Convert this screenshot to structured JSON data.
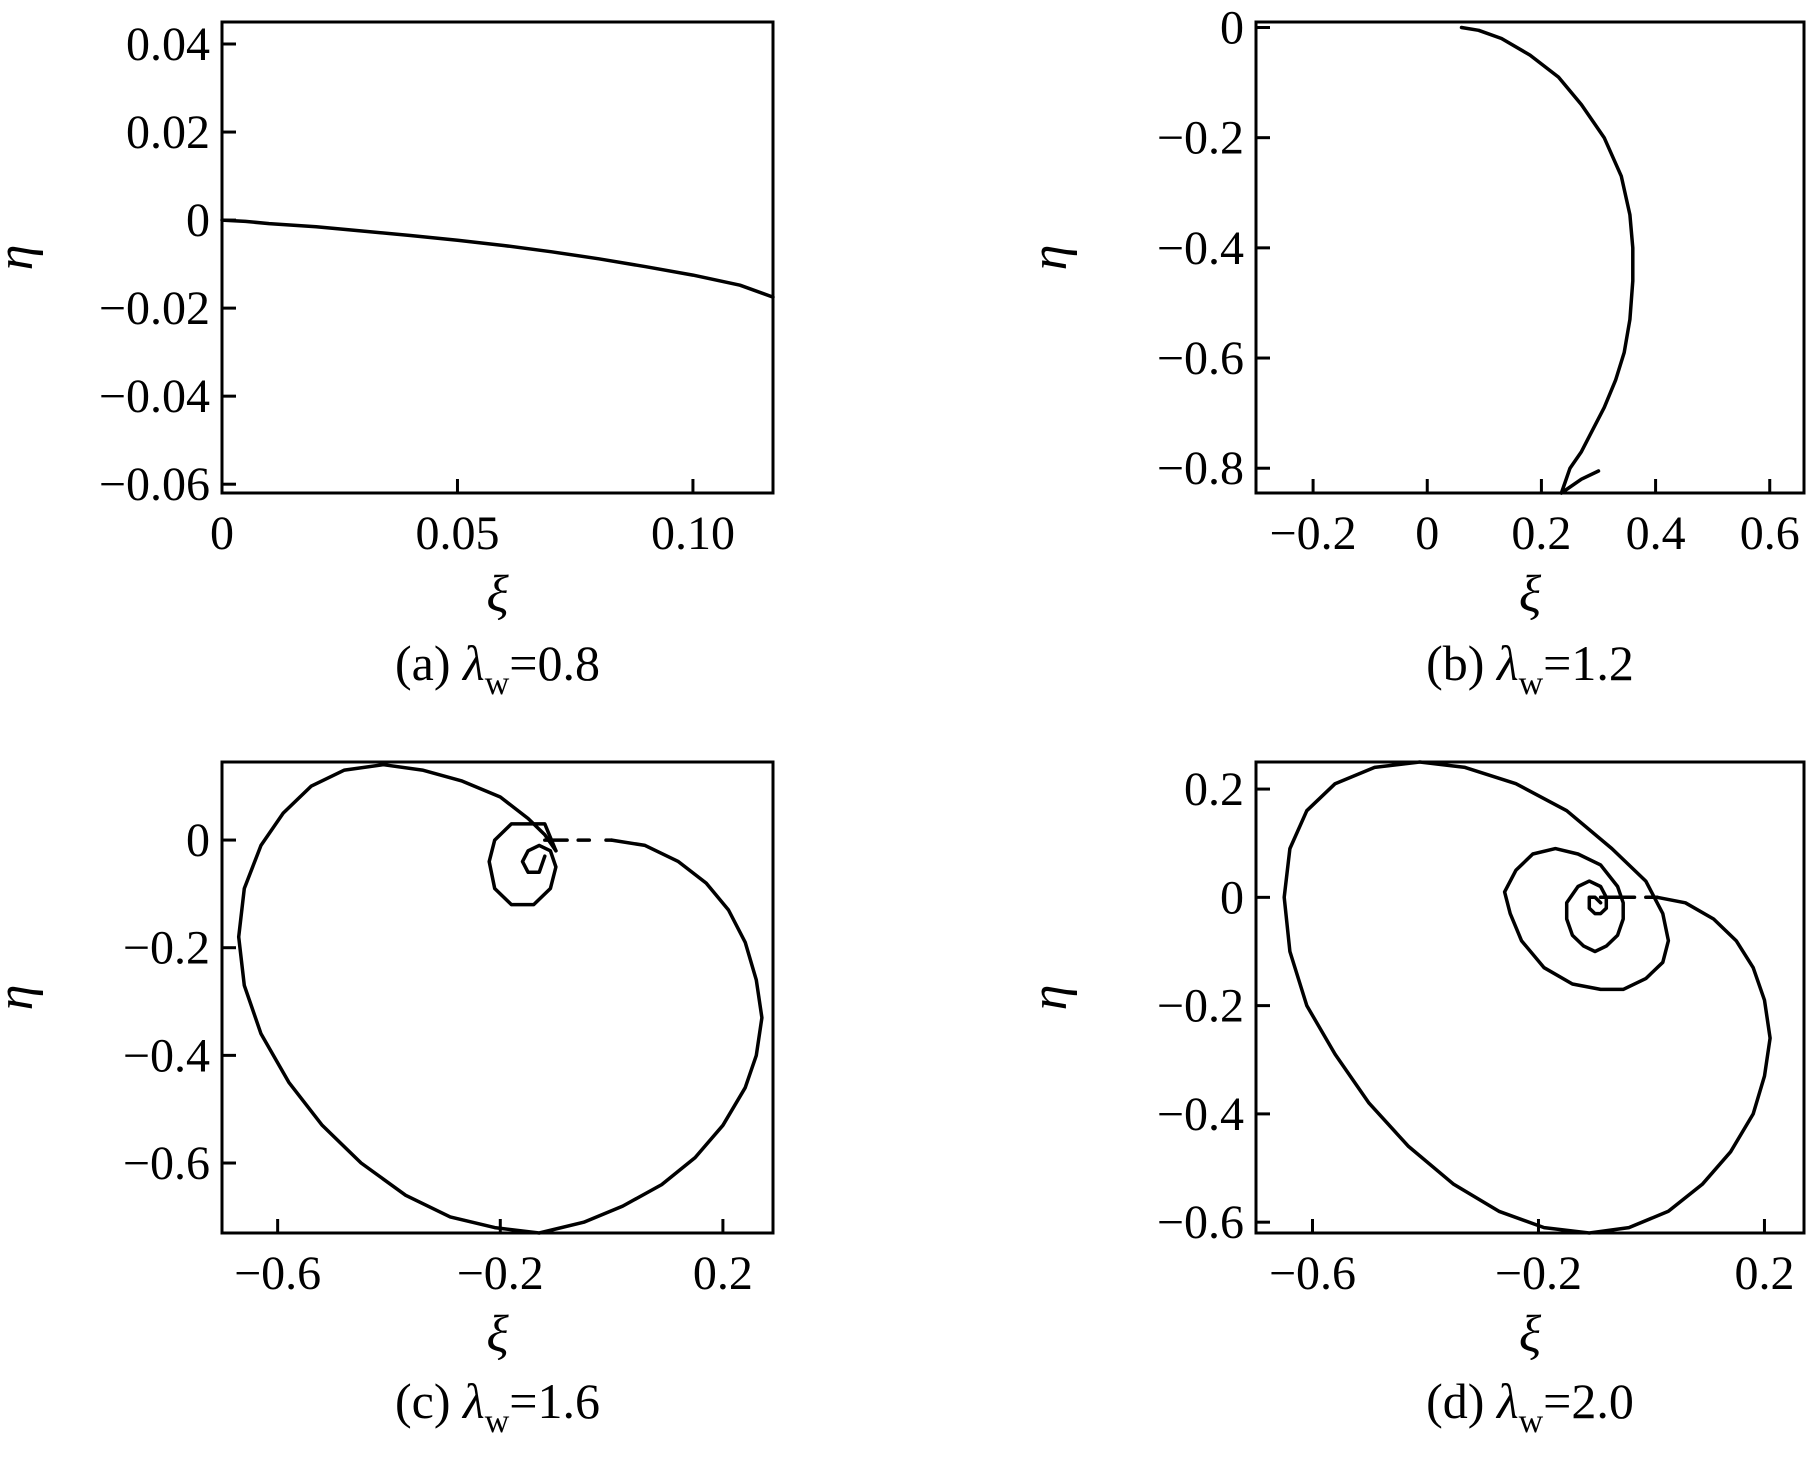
{
  "chart_data": [
    {
      "type": "line",
      "panel": "a",
      "caption": {
        "prefix": "(a) ",
        "symbol": "λ",
        "subscript": "w",
        "suffix": "=0.8"
      },
      "xlabel": "ξ",
      "ylabel": "η",
      "xlim": [
        0,
        0.117
      ],
      "ylim": [
        -0.062,
        0.045
      ],
      "xticks": [
        {
          "v": 0,
          "label": "0"
        },
        {
          "v": 0.05,
          "label": "0.05"
        },
        {
          "v": 0.1,
          "label": "0.10"
        }
      ],
      "yticks": [
        {
          "v": 0.04,
          "label": "0.04"
        },
        {
          "v": 0.02,
          "label": "0.02"
        },
        {
          "v": 0,
          "label": "0"
        },
        {
          "v": -0.02,
          "label": "−0.02"
        },
        {
          "v": -0.04,
          "label": "−0.04"
        },
        {
          "v": -0.06,
          "label": "−0.06"
        }
      ],
      "series": [
        {
          "x": [
            0,
            0.005,
            0.01,
            0.02,
            0.03,
            0.04,
            0.05,
            0.06,
            0.07,
            0.08,
            0.09,
            0.1,
            0.11,
            0.117
          ],
          "y": [
            0,
            -0.0003,
            -0.0008,
            -0.0015,
            -0.0025,
            -0.0035,
            -0.0046,
            -0.0058,
            -0.0072,
            -0.0088,
            -0.0106,
            -0.0125,
            -0.0148,
            -0.0175
          ]
        }
      ]
    },
    {
      "type": "line",
      "panel": "b",
      "caption": {
        "prefix": "(b) ",
        "symbol": "λ",
        "subscript": "w",
        "suffix": "=1.2"
      },
      "xlabel": "ξ",
      "ylabel": "η",
      "xlim": [
        -0.3,
        0.66
      ],
      "ylim": [
        -0.845,
        0.01
      ],
      "xticks": [
        {
          "v": -0.2,
          "label": "−0.2"
        },
        {
          "v": 0,
          "label": "0"
        },
        {
          "v": 0.2,
          "label": "0.2"
        },
        {
          "v": 0.4,
          "label": "0.4"
        },
        {
          "v": 0.6,
          "label": "0.6"
        }
      ],
      "yticks": [
        {
          "v": 0,
          "label": "0"
        },
        {
          "v": -0.2,
          "label": "−0.2"
        },
        {
          "v": -0.4,
          "label": "−0.4"
        },
        {
          "v": -0.6,
          "label": "−0.6"
        },
        {
          "v": -0.8,
          "label": "−0.8"
        }
      ],
      "series": [
        {
          "x": [
            0.06,
            0.09,
            0.13,
            0.18,
            0.23,
            0.27,
            0.31,
            0.34,
            0.355,
            0.36,
            0.36,
            0.355,
            0.345,
            0.33,
            0.31,
            0.29,
            0.27,
            0.25,
            0.235
          ],
          "y": [
            0,
            -0.005,
            -0.02,
            -0.05,
            -0.09,
            -0.14,
            -0.2,
            -0.27,
            -0.34,
            -0.4,
            -0.46,
            -0.53,
            -0.59,
            -0.64,
            -0.69,
            -0.73,
            -0.77,
            -0.8,
            -0.845
          ]
        },
        {
          "x": [
            0.235,
            0.27,
            0.3
          ],
          "y": [
            -0.845,
            -0.82,
            -0.805
          ]
        }
      ]
    },
    {
      "type": "line",
      "panel": "c",
      "caption": {
        "prefix": "(c) ",
        "symbol": "λ",
        "subscript": "w",
        "suffix": "=1.6"
      },
      "xlabel": "ξ",
      "ylabel": "η",
      "xlim": [
        -0.7,
        0.29
      ],
      "ylim": [
        -0.73,
        0.145
      ],
      "xticks": [
        {
          "v": -0.6,
          "label": "−0.6"
        },
        {
          "v": -0.2,
          "label": "−0.2"
        },
        {
          "v": 0.2,
          "label": "0.2"
        }
      ],
      "yticks": [
        {
          "v": 0,
          "label": "0"
        },
        {
          "v": -0.2,
          "label": "−0.2"
        },
        {
          "v": -0.4,
          "label": "−0.4"
        },
        {
          "v": -0.6,
          "label": "−0.6"
        }
      ],
      "series": [
        {
          "x": [
            0.0,
            0.06,
            0.12,
            0.17,
            0.21,
            0.24,
            0.26,
            0.27,
            0.26,
            0.24,
            0.2,
            0.15,
            0.09,
            0.02,
            -0.05,
            -0.13,
            -0.21,
            -0.29,
            -0.37,
            -0.45,
            -0.52,
            -0.58,
            -0.63,
            -0.66,
            -0.67,
            -0.66,
            -0.63,
            -0.59,
            -0.54,
            -0.48,
            -0.41,
            -0.34,
            -0.27,
            -0.2,
            -0.15,
            -0.12,
            -0.1
          ],
          "y": [
            0.0,
            -0.01,
            -0.04,
            -0.08,
            -0.13,
            -0.19,
            -0.26,
            -0.33,
            -0.4,
            -0.46,
            -0.53,
            -0.59,
            -0.64,
            -0.68,
            -0.71,
            -0.73,
            -0.72,
            -0.7,
            -0.66,
            -0.6,
            -0.53,
            -0.45,
            -0.36,
            -0.27,
            -0.18,
            -0.09,
            -0.01,
            0.05,
            0.1,
            0.13,
            0.14,
            0.13,
            0.11,
            0.08,
            0.04,
            0.01,
            -0.02
          ]
        },
        {
          "x": [
            -0.1,
            -0.12,
            -0.15,
            -0.18,
            -0.21,
            -0.22,
            -0.21,
            -0.18,
            -0.14,
            -0.11,
            -0.1,
            -0.11,
            -0.13,
            -0.15,
            -0.16,
            -0.15,
            -0.13,
            -0.12
          ],
          "y": [
            -0.02,
            0.03,
            0.03,
            0.03,
            0.0,
            -0.04,
            -0.09,
            -0.12,
            -0.12,
            -0.09,
            -0.05,
            -0.02,
            -0.01,
            -0.02,
            -0.04,
            -0.06,
            -0.06,
            -0.03
          ]
        },
        {
          "x": [
            -0.12,
            -0.08
          ],
          "y": [
            0.0,
            0.0
          ]
        },
        {
          "x": [
            -0.06,
            -0.04
          ],
          "y": [
            0.0,
            0.0
          ]
        },
        {
          "x": [
            -0.01,
            0.0
          ],
          "y": [
            0.0,
            0.0
          ]
        }
      ]
    },
    {
      "type": "line",
      "panel": "d",
      "caption": {
        "prefix": "(d) ",
        "symbol": "λ",
        "subscript": "w",
        "suffix": "=2.0"
      },
      "xlabel": "ξ",
      "ylabel": "η",
      "xlim": [
        -0.7,
        0.27
      ],
      "ylim": [
        -0.62,
        0.25
      ],
      "xticks": [
        {
          "v": -0.6,
          "label": "−0.6"
        },
        {
          "v": -0.2,
          "label": "−0.2"
        },
        {
          "v": 0.2,
          "label": "0.2"
        }
      ],
      "yticks": [
        {
          "v": 0.2,
          "label": "0.2"
        },
        {
          "v": 0,
          "label": "0"
        },
        {
          "v": -0.2,
          "label": "−0.2"
        },
        {
          "v": -0.4,
          "label": "−0.4"
        },
        {
          "v": -0.6,
          "label": "−0.6"
        }
      ],
      "series": [
        {
          "x": [
            0.01,
            0.06,
            0.11,
            0.15,
            0.18,
            0.2,
            0.21,
            0.2,
            0.18,
            0.14,
            0.09,
            0.03,
            -0.04,
            -0.11,
            -0.19,
            -0.27,
            -0.35,
            -0.43,
            -0.5,
            -0.56,
            -0.61,
            -0.64,
            -0.65,
            -0.64,
            -0.61,
            -0.56,
            -0.49,
            -0.41,
            -0.33,
            -0.24,
            -0.15,
            -0.07,
            -0.01,
            0.02,
            0.03,
            0.02,
            -0.01,
            -0.05,
            -0.09,
            -0.14,
            -0.19,
            -0.23,
            -0.25,
            -0.26,
            -0.24,
            -0.21,
            -0.17,
            -0.13,
            -0.09,
            -0.06,
            -0.05,
            -0.05,
            -0.06,
            -0.08,
            -0.1,
            -0.12,
            -0.14,
            -0.15,
            -0.15,
            -0.13,
            -0.11,
            -0.09,
            -0.08,
            -0.08,
            -0.09,
            -0.1,
            -0.11,
            -0.11,
            -0.1,
            -0.09
          ],
          "y": [
            0.0,
            -0.01,
            -0.04,
            -0.08,
            -0.13,
            -0.19,
            -0.26,
            -0.33,
            -0.4,
            -0.47,
            -0.53,
            -0.58,
            -0.61,
            -0.62,
            -0.61,
            -0.58,
            -0.53,
            -0.46,
            -0.38,
            -0.29,
            -0.2,
            -0.1,
            0.0,
            0.09,
            0.16,
            0.21,
            0.24,
            0.25,
            0.24,
            0.21,
            0.16,
            0.09,
            0.03,
            -0.03,
            -0.08,
            -0.12,
            -0.15,
            -0.17,
            -0.17,
            -0.16,
            -0.13,
            -0.08,
            -0.03,
            0.01,
            0.05,
            0.08,
            0.09,
            0.08,
            0.06,
            0.02,
            -0.01,
            -0.04,
            -0.07,
            -0.09,
            -0.1,
            -0.09,
            -0.07,
            -0.04,
            -0.01,
            0.02,
            0.03,
            0.02,
            0.0,
            -0.02,
            -0.03,
            -0.03,
            -0.02,
            0.0,
            0.0,
            -0.01
          ]
        },
        {
          "x": [
            -0.09,
            -0.03
          ],
          "y": [
            0.0,
            0.0
          ]
        },
        {
          "x": [
            -0.01,
            0.01
          ],
          "y": [
            0.0,
            0.0
          ]
        }
      ]
    }
  ]
}
